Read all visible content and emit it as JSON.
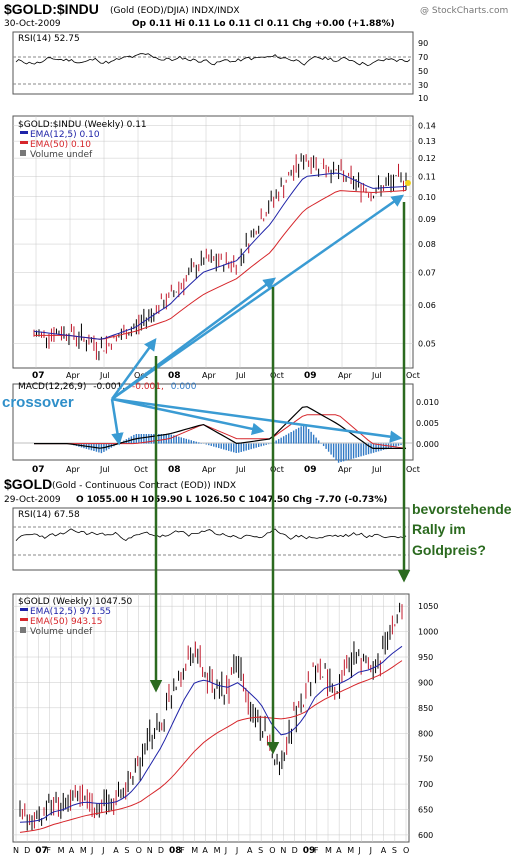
{
  "header1": {
    "symbol": "$GOLD:$INDU",
    "desc": "(Gold (EOD)/DJIA)  INDX/INDX",
    "brand": "@ StockCharts.com",
    "date": "30-Oct-2009",
    "quote": "Op 0.11  Hi 0.11  Lo 0.11  Cl 0.11  Chg +0.00 (+1.88%)"
  },
  "rsi1": {
    "label": "RSI(14) 52.75",
    "ticks": [
      "90",
      "70",
      "50",
      "30",
      "10"
    ]
  },
  "ratio_panel": {
    "legend_title": "$GOLD:$INDU (Weekly) 0.11",
    "legend_ema12": "EMA(12,5) 0.10",
    "legend_ema50": "EMA(50) 0.10",
    "legend_volume": "Volume undef",
    "ticks": [
      "0.14",
      "0.13",
      "0.12",
      "0.11",
      "0.10",
      "0.09",
      "0.08",
      "0.07",
      "0.06",
      "0.05"
    ],
    "xlabels": [
      "07",
      "Apr",
      "Jul",
      "Oct",
      "08",
      "Apr",
      "Jul",
      "Oct",
      "09",
      "Apr",
      "Jul",
      "Oct"
    ]
  },
  "macd_panel": {
    "label_prefix": "MACD(12,26,9)",
    "label_v1": "-0.001,",
    "label_v2": "-0.001,",
    "label_v3": "0.000",
    "ticks": [
      "0.010",
      "0.005",
      "0.000"
    ],
    "xlabels": [
      "07",
      "Apr",
      "Jul",
      "Oct",
      "08",
      "Apr",
      "Jul",
      "Oct",
      "09",
      "Apr",
      "Jul",
      "Oct"
    ]
  },
  "annotations": {
    "crossover": "crossover",
    "rally_line1": "bevorstehende",
    "rally_line2": "Rally im",
    "rally_line3": "Goldpreis?"
  },
  "header2": {
    "symbol": "$GOLD",
    "desc": "(Gold - Continuous Contract (EOD))  INDX",
    "date": "29-Oct-2009",
    "quote": "O 1055.00  H 1059.90  L 1026.50  C 1047.50  Chg -7.70 (-0.73%)"
  },
  "rsi2": {
    "label": "RSI(14) 67.58"
  },
  "gold_panel": {
    "legend_title": "$GOLD (Weekly) 1047.50",
    "legend_ema12": "EMA(12,5) 971.55",
    "legend_ema50": "EMA(50) 943.15",
    "legend_volume": "Volume undef",
    "ticks": [
      "1050",
      "1000",
      "950",
      "900",
      "850",
      "800",
      "750",
      "700",
      "650",
      "600"
    ],
    "xlabels": [
      "N",
      "D",
      "07",
      "F",
      "M",
      "A",
      "M",
      "J",
      "J",
      "A",
      "S",
      "O",
      "N",
      "D",
      "08",
      "F",
      "M",
      "A",
      "M",
      "J",
      "J",
      "A",
      "S",
      "O",
      "N",
      "D",
      "09",
      "F",
      "M",
      "A",
      "M",
      "J",
      "J",
      "A",
      "S",
      "O"
    ]
  },
  "colors": {
    "price": "#000000",
    "ema_fast": "#1f23a8",
    "ema_slow": "#d6262b",
    "annotation_blue": "#3a9bd3",
    "annotation_green": "#2b6a1f",
    "histogram": "#2f78c4",
    "grid": "#c8c8c8"
  },
  "chart_data": [
    {
      "type": "line",
      "title": "$GOLD:$INDU",
      "xlabel": "",
      "ylabel": "",
      "x": [
        "07",
        "Apr",
        "Jul",
        "Oct",
        "08",
        "Apr",
        "Jul",
        "Oct",
        "09",
        "Apr",
        "Jul",
        "Oct"
      ],
      "ylim": [
        0.045,
        0.145
      ],
      "log_scale": true,
      "grid": true,
      "series": [
        {
          "name": "$GOLD:$INDU (Weekly)",
          "values": [
            0.052,
            0.053,
            0.049,
            0.054,
            0.062,
            0.074,
            0.073,
            0.097,
            0.12,
            0.112,
            0.102,
            0.11
          ]
        },
        {
          "name": "EMA(12,5)",
          "values": [
            0.053,
            0.052,
            0.051,
            0.054,
            0.06,
            0.07,
            0.074,
            0.088,
            0.11,
            0.112,
            0.104,
            0.105
          ]
        },
        {
          "name": "EMA(50)",
          "values": [
            0.052,
            0.052,
            0.051,
            0.053,
            0.056,
            0.063,
            0.068,
            0.077,
            0.094,
            0.103,
            0.102,
            0.103
          ]
        }
      ]
    },
    {
      "type": "line",
      "title": "MACD(12,26,9)",
      "x": [
        "07",
        "Apr",
        "Jul",
        "Oct",
        "08",
        "Apr",
        "Jul",
        "Oct",
        "09",
        "Apr",
        "Jul",
        "Oct"
      ],
      "ylim": [
        -0.003,
        0.012
      ],
      "series": [
        {
          "name": "MACD",
          "values": [
            0.0,
            0.0,
            -0.001,
            0.001,
            0.002,
            0.004,
            0.0,
            0.001,
            0.008,
            0.004,
            -0.001,
            -0.001
          ]
        },
        {
          "name": "Signal",
          "values": [
            0.0,
            0.0,
            -0.0,
            0.0,
            0.001,
            0.004,
            0.001,
            0.001,
            0.006,
            0.006,
            0.0,
            -0.001
          ]
        }
      ]
    },
    {
      "type": "line",
      "title": "$GOLD",
      "x": [
        "N",
        "D",
        "07",
        "F",
        "M",
        "A",
        "M",
        "J",
        "J",
        "A",
        "S",
        "O",
        "N",
        "D",
        "08",
        "F",
        "M",
        "A",
        "M",
        "J",
        "J",
        "A",
        "S",
        "O",
        "N",
        "D",
        "09",
        "F",
        "M",
        "A",
        "M",
        "J",
        "J",
        "A",
        "S",
        "O"
      ],
      "ylim": [
        590,
        1070
      ],
      "grid": true,
      "series": [
        {
          "name": "$GOLD (Weekly)",
          "values": [
            630,
            625,
            635,
            665,
            655,
            680,
            670,
            655,
            665,
            670,
            705,
            740,
            800,
            820,
            890,
            930,
            970,
            910,
            880,
            890,
            940,
            850,
            820,
            760,
            740,
            830,
            870,
            930,
            920,
            890,
            930,
            950,
            930,
            950,
            1000,
            1047
          ]
        },
        {
          "name": "EMA(12,5)",
          "values": [
            625,
            626,
            630,
            645,
            650,
            660,
            665,
            662,
            662,
            666,
            680,
            705,
            740,
            775,
            820,
            865,
            900,
            905,
            895,
            890,
            900,
            880,
            860,
            820,
            795,
            805,
            830,
            870,
            890,
            895,
            905,
            920,
            925,
            935,
            955,
            971
          ]
        },
        {
          "name": "EMA(50)",
          "values": [
            605,
            608,
            612,
            620,
            626,
            632,
            638,
            642,
            646,
            650,
            656,
            665,
            680,
            695,
            715,
            740,
            765,
            785,
            800,
            812,
            825,
            830,
            832,
            830,
            828,
            832,
            840,
            855,
            868,
            878,
            888,
            898,
            906,
            915,
            928,
            943
          ]
        }
      ]
    }
  ]
}
